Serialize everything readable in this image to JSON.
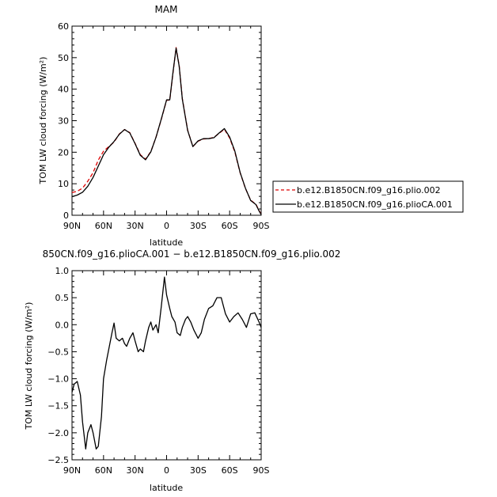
{
  "chart_data": [
    {
      "type": "line",
      "title": "MAM",
      "xlabel": "latitude",
      "ylabel": "TOM LW cloud forcing (W/m²)",
      "xticks": [
        "90N",
        "60N",
        "30N",
        "0",
        "30S",
        "60S",
        "90S"
      ],
      "yticks": [
        "0",
        "10",
        "20",
        "30",
        "40",
        "50",
        "60"
      ],
      "ylim": [
        0,
        60
      ],
      "xlim": [
        90,
        -90
      ],
      "legend_position": "right",
      "x": [
        90,
        85,
        80,
        75,
        70,
        65,
        60,
        55,
        50,
        45,
        40,
        35,
        30,
        25,
        20,
        15,
        10,
        5,
        0,
        -3,
        -6,
        -9,
        -12,
        -15,
        -20,
        -25,
        -30,
        -35,
        -40,
        -45,
        -50,
        -55,
        -60,
        -65,
        -70,
        -75,
        -80,
        -85,
        -88,
        -90
      ],
      "series": [
        {
          "name": "b.e12.B1850CN.f09_g16.plio.002",
          "color": "#dd0000",
          "dash": "dashed",
          "values": [
            7.2,
            7.6,
            8.6,
            10.8,
            13.5,
            17.5,
            20.3,
            21.8,
            23.2,
            25.8,
            27.2,
            26.2,
            22.8,
            19.2,
            17.8,
            20.2,
            24.8,
            30.5,
            36.5,
            36.5,
            45.0,
            53.2,
            47.5,
            37.0,
            27.0,
            21.8,
            23.5,
            24.2,
            24.3,
            24.7,
            26.0,
            27.3,
            24.5,
            20.0,
            13.5,
            8.5,
            4.8,
            3.5,
            1.5,
            0.3
          ]
        },
        {
          "name": "b.e12.B1850CN.f09_g16.plioCA.001",
          "color": "#000000",
          "dash": "solid",
          "values": [
            5.9,
            6.4,
            7.3,
            9.2,
            12.0,
            15.6,
            19.2,
            21.6,
            23.4,
            25.7,
            27.2,
            26.1,
            22.7,
            19.0,
            17.6,
            20.1,
            24.8,
            30.6,
            36.6,
            36.6,
            45.2,
            53.0,
            47.3,
            36.8,
            26.9,
            21.8,
            23.6,
            24.3,
            24.3,
            24.6,
            26.1,
            27.5,
            24.8,
            20.3,
            13.6,
            8.6,
            4.7,
            3.4,
            1.4,
            0.2
          ]
        }
      ]
    },
    {
      "type": "line",
      "title": "850CN.f09_g16.plioCA.001 − b.e12.B1850CN.f09_g16.plio.002",
      "xlabel": "latitude",
      "ylabel": "TOM LW cloud forcing (W/m²)",
      "xticks": [
        "90N",
        "60N",
        "30N",
        "0",
        "30S",
        "60S",
        "90S"
      ],
      "yticks": [
        "−2.5",
        "−2.0",
        "−1.5",
        "−1.0",
        "−0.5",
        "0.0",
        "0.5",
        "1.0"
      ],
      "ylim": [
        -2.5,
        1.0
      ],
      "xlim": [
        90,
        -90
      ],
      "series": [
        {
          "name": "",
          "color": "#000000",
          "values": [
            -1.25,
            -1.1,
            -1.05,
            -1.3,
            -1.8,
            -2.3,
            -2.0,
            -1.85,
            -2.0,
            -2.3,
            -2.25,
            -1.7,
            -1.0,
            -0.65,
            -0.45,
            -0.15,
            0.03,
            -0.25,
            -0.3,
            -0.25,
            -0.35,
            -0.4,
            -0.25,
            -0.15,
            -0.3,
            -0.5,
            -0.45,
            -0.5,
            -0.3,
            -0.05,
            0.05,
            -0.1,
            0.0,
            -0.15,
            0.35,
            0.88,
            0.55,
            0.3,
            0.15,
            0.05,
            -0.15,
            -0.2,
            -0.05,
            0.1,
            0.15,
            0.05,
            -0.1,
            -0.25,
            -0.15,
            0.1,
            0.3,
            0.35,
            0.5,
            0.5,
            0.2,
            0.05,
            0.15,
            0.22,
            0.1,
            -0.05
          ],
          "x": [
            90,
            88,
            85,
            82,
            80,
            77,
            75,
            72,
            70,
            67,
            65,
            62,
            60,
            57,
            55,
            52,
            50,
            48,
            45,
            42,
            40,
            38,
            35,
            32,
            30,
            27,
            25,
            22,
            20,
            17,
            15,
            13,
            10,
            8,
            5,
            2,
            0,
            -3,
            -5,
            -8,
            -10,
            -13,
            -15,
            -18,
            -20,
            -23,
            -26,
            -30,
            -33,
            -36,
            -40,
            -44,
            -48,
            -52,
            -56,
            -60,
            -64,
            -68,
            -72,
            -76
          ]
        }
      ]
    }
  ],
  "diff_tail": {
    "x": [
      -80,
      -84,
      -88,
      -90
    ],
    "values": [
      0.2,
      0.22,
      0.05,
      -0.05
    ]
  },
  "legend_entries": [
    {
      "label": "b.e12.B1850CN.f09_g16.plio.002",
      "color": "#dd0000",
      "dash": "dashed"
    },
    {
      "label": "b.e12.B1850CN.f09_g16.plioCA.001",
      "color": "#000000",
      "dash": "solid"
    }
  ]
}
